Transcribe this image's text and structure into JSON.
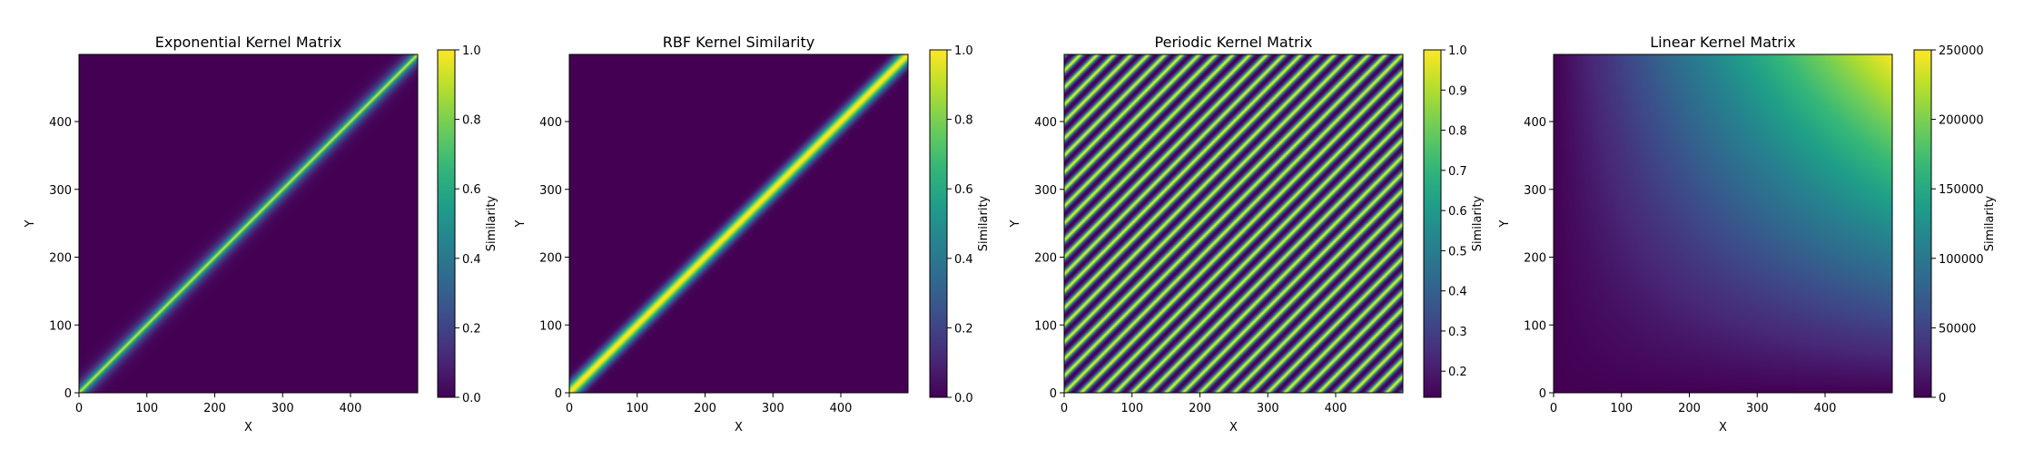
{
  "chart_data": [
    {
      "type": "heatmap",
      "kernel": "exponential",
      "title": "Exponential Kernel Matrix",
      "xlabel": "X",
      "ylabel": "Y",
      "xlim": [
        0,
        499
      ],
      "ylim": [
        0,
        499
      ],
      "xticks": [
        0,
        100,
        200,
        300,
        400
      ],
      "yticks": [
        0,
        100,
        200,
        300,
        400
      ],
      "colorbar": {
        "label": "Similarity",
        "range": [
          0,
          1
        ],
        "ticks": [
          "0.0",
          "0.2",
          "0.4",
          "0.6",
          "0.8",
          "1.0"
        ]
      },
      "colormap": "viridis"
    },
    {
      "type": "heatmap",
      "kernel": "rbf",
      "title": "RBF Kernel Similarity",
      "xlabel": "X",
      "ylabel": "Y",
      "xlim": [
        0,
        499
      ],
      "ylim": [
        0,
        499
      ],
      "xticks": [
        0,
        100,
        200,
        300,
        400
      ],
      "yticks": [
        0,
        100,
        200,
        300,
        400
      ],
      "colorbar": {
        "label": "Similarity",
        "range": [
          0,
          1
        ],
        "ticks": [
          "0.0",
          "0.2",
          "0.4",
          "0.6",
          "0.8",
          "1.0"
        ]
      },
      "colormap": "viridis"
    },
    {
      "type": "heatmap",
      "kernel": "periodic",
      "title": "Periodic Kernel Matrix",
      "xlabel": "X",
      "ylabel": "Y",
      "xlim": [
        0,
        499
      ],
      "ylim": [
        0,
        499
      ],
      "xticks": [
        0,
        100,
        200,
        300,
        400
      ],
      "yticks": [
        0,
        100,
        200,
        300,
        400
      ],
      "colorbar": {
        "label": "Similarity",
        "range": [
          0.135,
          1.0
        ],
        "ticks": [
          "0.2",
          "0.3",
          "0.4",
          "0.5",
          "0.6",
          "0.7",
          "0.8",
          "0.9",
          "1.0"
        ]
      },
      "colormap": "viridis"
    },
    {
      "type": "heatmap",
      "kernel": "linear",
      "title": "Linear Kernel Matrix",
      "xlabel": "X",
      "ylabel": "Y",
      "xlim": [
        0,
        499
      ],
      "ylim": [
        0,
        499
      ],
      "xticks": [
        0,
        100,
        200,
        300,
        400
      ],
      "yticks": [
        0,
        100,
        200,
        300,
        400
      ],
      "colorbar": {
        "label": "Similarity",
        "range": [
          0,
          250000
        ],
        "ticks": [
          "0",
          "50000",
          "100000",
          "150000",
          "200000",
          "250000"
        ]
      },
      "colormap": "viridis"
    }
  ]
}
